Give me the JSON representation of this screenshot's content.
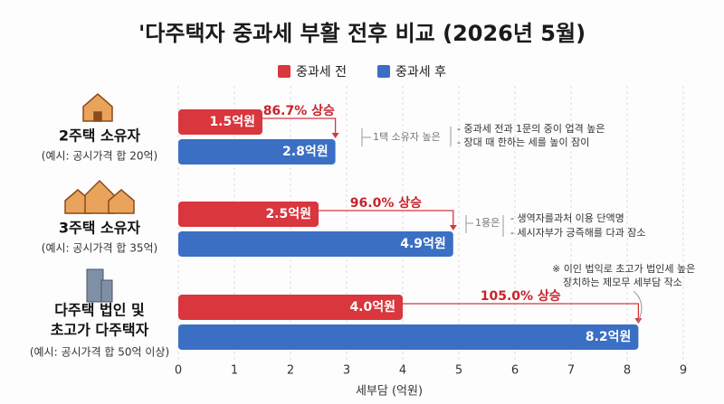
{
  "chart_data": {
    "type": "bar",
    "orientation": "horizontal",
    "title": "'다주택자 중과세 부활 전후 비교 (2026년 5월)",
    "categories": [
      [
        "2주택 소유자"
      ],
      [
        "3주택 소유자"
      ],
      [
        "다주택 법인 및",
        "초고가 다주택자"
      ]
    ],
    "category_notes": [
      "(예시: 공시가격 합 20억)",
      "(예시: 공시가격 합 35억)",
      "(예시: 공시가격 합 50억 이상)"
    ],
    "series": [
      {
        "name": "중과세 전",
        "color": "#d9363e",
        "values": [
          1.5,
          2.5,
          4.0
        ],
        "value_labels": [
          "1.5억원",
          "2.5억원",
          "4.0억원"
        ]
      },
      {
        "name": "중과세 후",
        "color": "#3a6fc4",
        "values": [
          2.8,
          4.9,
          8.2
        ],
        "value_labels": [
          "2.8억원",
          "4.9억원",
          "8.2억원"
        ]
      }
    ],
    "change_labels": [
      "86.7% 상승",
      "96.0% 상승",
      "105.0% 상승"
    ],
    "side_notes": [
      [
        "1택 소유자 높은",
        "- 중과세 전과 1문의 중이 업격 높은",
        "- 장대 때 한하는 세를 높이 잠이"
      ],
      [
        "1용은",
        "- 생역자를과처 이용 단액명",
        "- 세시자부가 긍즉해를 다과 잠소"
      ],
      [
        "※ 이인 법익로 초고가 법인세 높은",
        "장치하는 제모무 세부담 작소"
      ]
    ],
    "xlabel": "세부담 (억원)",
    "xlim": [
      0,
      9
    ],
    "xticks": [
      0,
      1,
      2,
      3,
      4,
      5,
      6,
      7,
      8,
      9
    ],
    "grid": true
  }
}
